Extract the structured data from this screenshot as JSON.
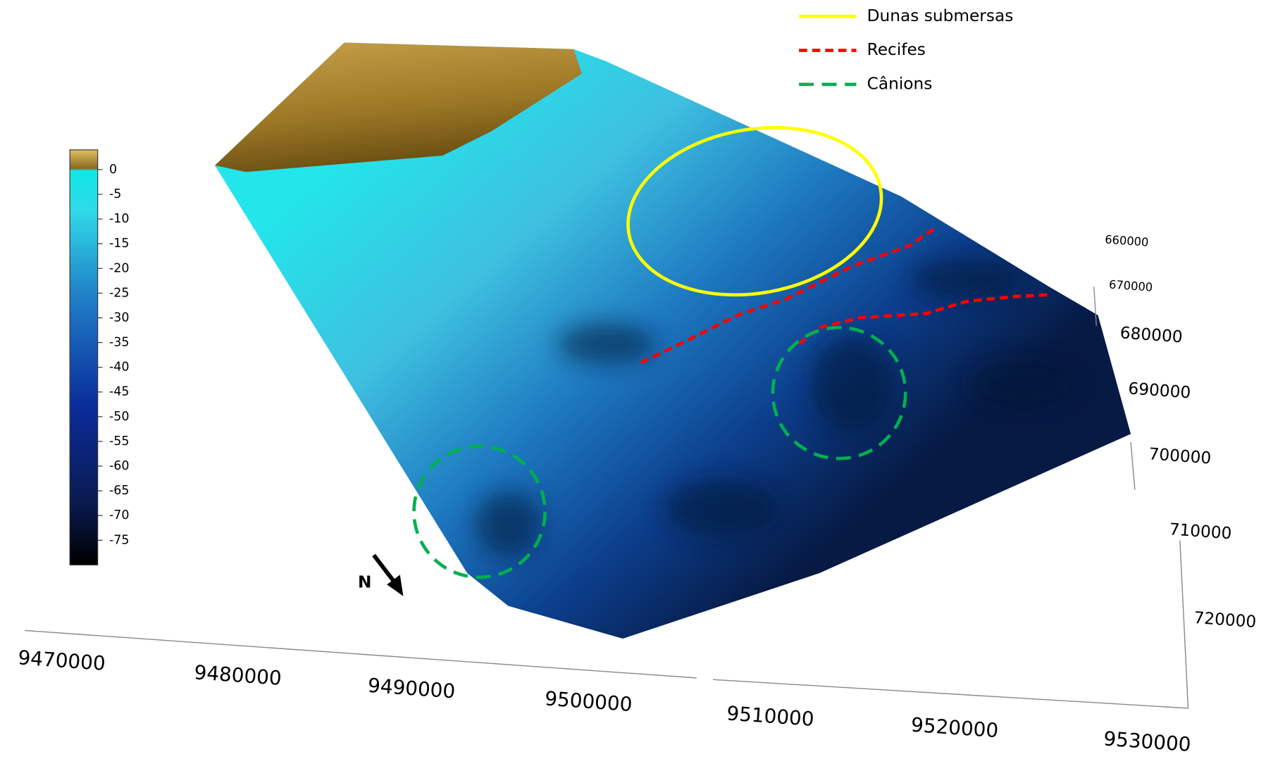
{
  "legend": {
    "items": [
      {
        "label": "Dunas submersas",
        "color": "#ffff00",
        "dash": "none"
      },
      {
        "label": "Recifes",
        "color": "#ff0000",
        "dash": "10 6"
      },
      {
        "label": "Cânions",
        "color": "#00b050",
        "dash": "18 10"
      }
    ]
  },
  "colorbar": {
    "limits": [
      -80,
      4
    ],
    "ticks": [
      0,
      -5,
      -10,
      -15,
      -20,
      -25,
      -30,
      -35,
      -40,
      -45,
      -50,
      -55,
      -60,
      -65,
      -70,
      -75
    ]
  },
  "north": "N",
  "axes": {
    "x": {
      "ticks": [
        "9470000",
        "9480000",
        "9490000",
        "9500000",
        "9510000",
        "9520000",
        "9530000"
      ]
    },
    "y": {
      "ticks": [
        "660000",
        "670000",
        "680000",
        "690000",
        "700000",
        "710000",
        "720000"
      ]
    }
  }
}
